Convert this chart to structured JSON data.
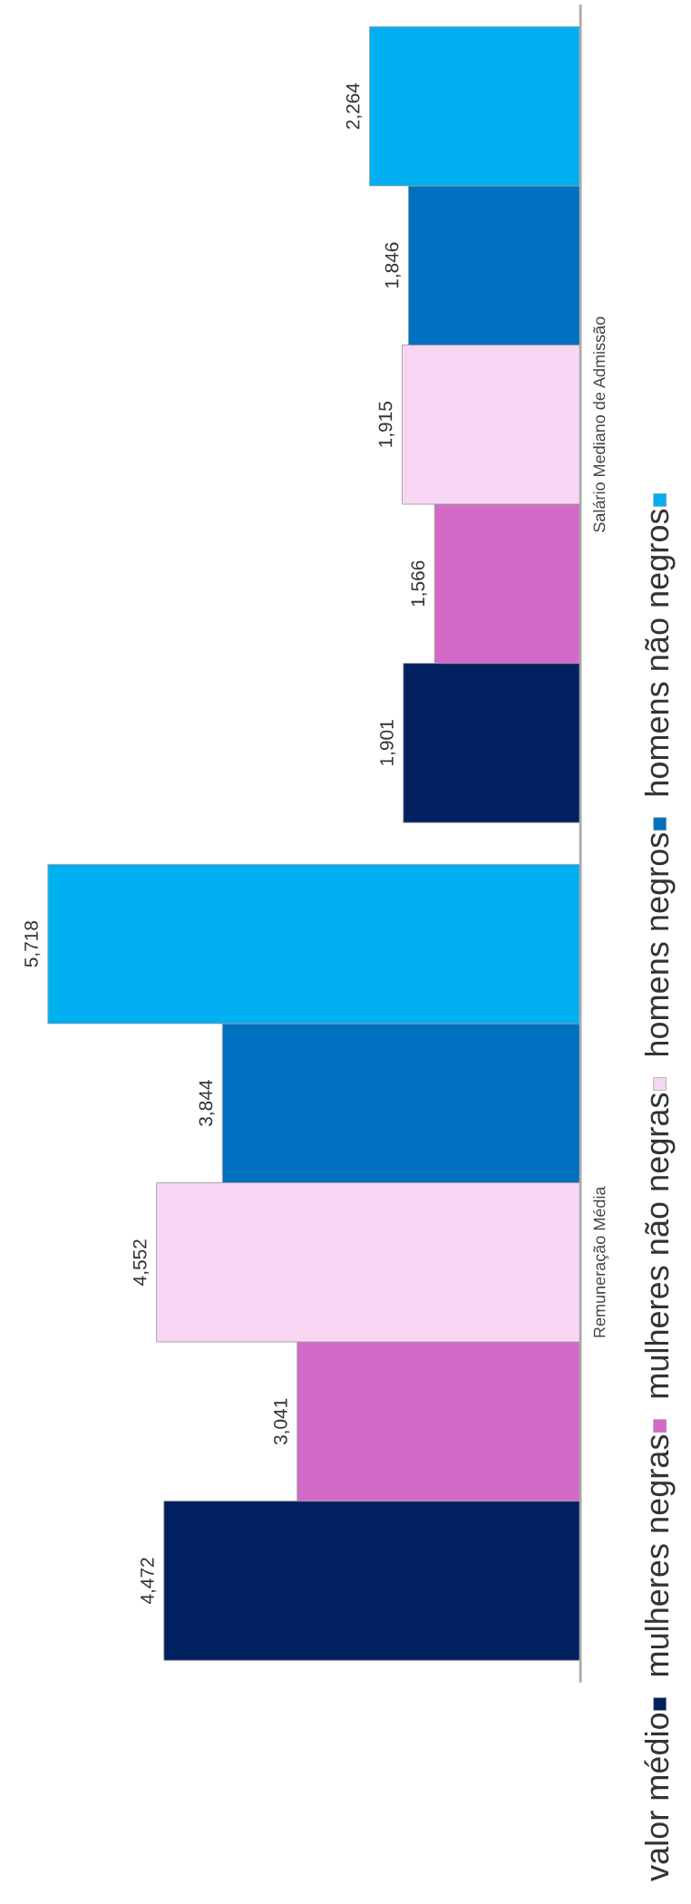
{
  "chart_data": {
    "type": "bar",
    "orientation": "horizontal",
    "legend": "right",
    "grid": false,
    "categories": [
      "Salário Mediano de Admissão",
      "Remuneração Média"
    ],
    "series": [
      {
        "name": "valor médio",
        "color": "#002060",
        "values": [
          1901,
          4472
        ],
        "value_labels": [
          "1,901",
          "4,472"
        ]
      },
      {
        "name": "mulheres negras",
        "color": "#d36ac8",
        "values": [
          1566,
          3041
        ],
        "value_labels": [
          "1,566",
          "3,041"
        ]
      },
      {
        "name": "mulheres não negras",
        "color": "#f8d6f3",
        "values": [
          1915,
          4552
        ],
        "value_labels": [
          "1,915",
          "4,552"
        ]
      },
      {
        "name": "homens negros",
        "color": "#0070c0",
        "values": [
          1846,
          3844
        ],
        "value_labels": [
          "1,846",
          "3,844"
        ]
      },
      {
        "name": "homens não negros",
        "color": "#00b0f0",
        "values": [
          2264,
          5718
        ],
        "value_labels": [
          "2,264",
          "5,718"
        ]
      }
    ]
  }
}
